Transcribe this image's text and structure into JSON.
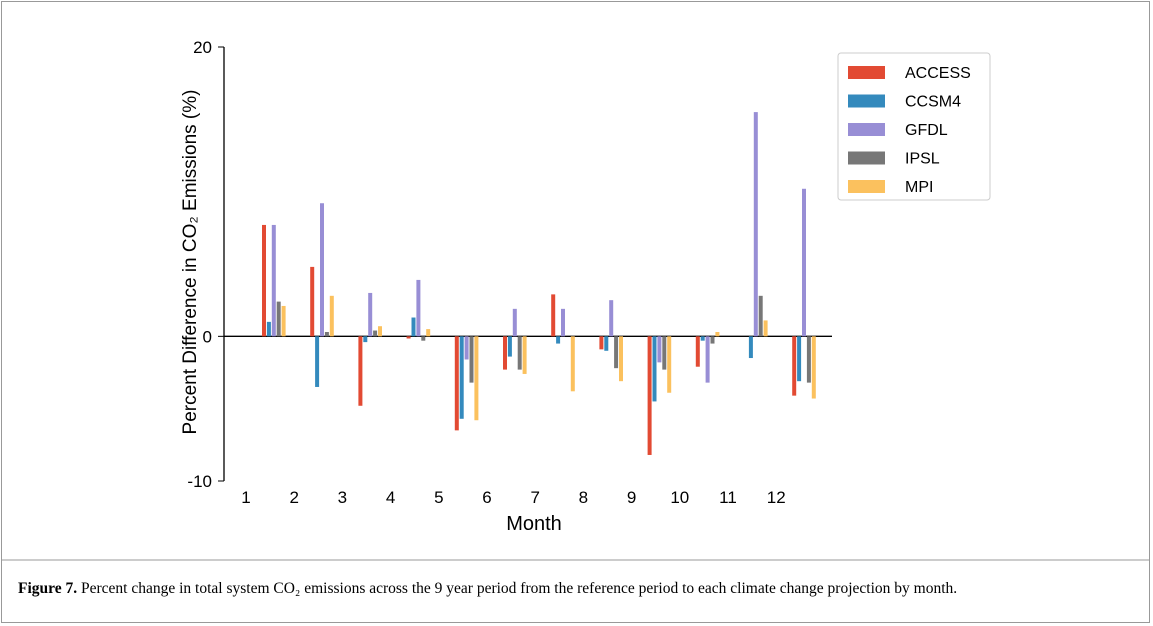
{
  "chart_data": {
    "type": "bar",
    "ylabel": "Percent Difference in CO₂ Emissions (%)",
    "xlabel": "Month",
    "categories": [
      "1",
      "2",
      "3",
      "4",
      "5",
      "6",
      "7",
      "8",
      "9",
      "10",
      "11",
      "12"
    ],
    "series": [
      {
        "name": "ACCESS",
        "color": "#e24a33",
        "values": [
          7.7,
          4.8,
          -4.8,
          -0.15,
          -6.5,
          -2.3,
          2.9,
          -0.9,
          -8.2,
          -2.1,
          0,
          -4.1
        ]
      },
      {
        "name": "CCSM4",
        "color": "#348abd",
        "values": [
          1.0,
          -3.5,
          -0.4,
          1.3,
          -5.7,
          -1.4,
          -0.5,
          -1.0,
          -4.5,
          -0.3,
          -1.5,
          -3.1
        ]
      },
      {
        "name": "GFDL",
        "color": "#988ed5",
        "values": [
          7.7,
          9.2,
          3.0,
          3.9,
          -1.6,
          1.9,
          1.9,
          2.5,
          -1.8,
          -3.2,
          15.5,
          10.2
        ]
      },
      {
        "name": "IPSL",
        "color": "#777777",
        "values": [
          2.4,
          0.3,
          0.4,
          -0.3,
          -3.2,
          -2.3,
          0,
          -2.2,
          -2.3,
          -0.5,
          2.8,
          -3.2
        ]
      },
      {
        "name": "MPI",
        "color": "#fbc15e",
        "values": [
          2.1,
          2.8,
          0.7,
          0.5,
          -5.8,
          -2.6,
          -3.8,
          -3.1,
          -3.9,
          0.3,
          1.1,
          -4.3
        ]
      }
    ],
    "ylim": [
      -10,
      20
    ],
    "yticks": [
      -10,
      0,
      20
    ],
    "legend": "upper right"
  },
  "caption": {
    "label": "Figure 7.",
    "text": "Percent change in total system CO₂ emissions across the 9 year period from the reference period to each climate change projection by month."
  }
}
